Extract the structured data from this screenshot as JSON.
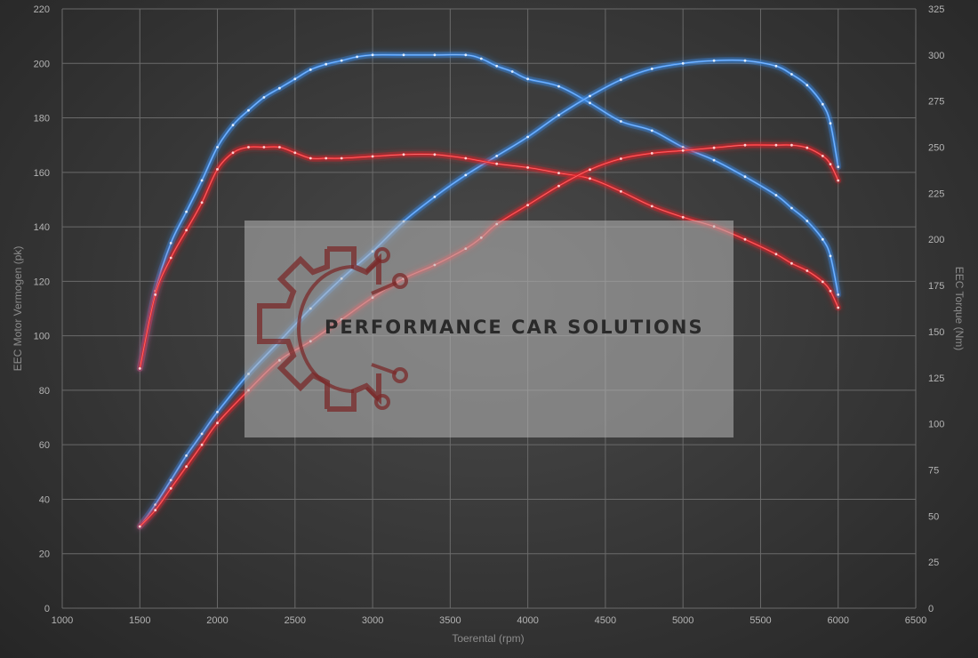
{
  "chart_data": {
    "type": "line",
    "xlabel": "Toerental (rpm)",
    "ylabel_left": "EEC Motor Vermogen (pk)",
    "ylabel_right": "EEC Torque (Nm)",
    "xlim": [
      1000,
      6500
    ],
    "ylim_left": [
      0,
      220
    ],
    "ylim_right": [
      0,
      325
    ],
    "x_ticks": [
      1000,
      1500,
      2000,
      2500,
      3000,
      3500,
      4000,
      4500,
      5000,
      5500,
      6000,
      6500
    ],
    "y_left_ticks": [
      0,
      20,
      40,
      60,
      80,
      100,
      120,
      140,
      160,
      180,
      200,
      220
    ],
    "y_right_ticks": [
      0,
      25,
      50,
      75,
      100,
      125,
      150,
      175,
      200,
      225,
      250,
      275,
      300,
      325
    ],
    "grid": true,
    "series": [
      {
        "color": "#3d8ff0",
        "axis": "right",
        "x": [
          1500,
          1600,
          1700,
          1800,
          1900,
          2000,
          2100,
          2200,
          2300,
          2400,
          2500,
          2600,
          2700,
          2800,
          2900,
          3000,
          3200,
          3400,
          3600,
          3700,
          3800,
          3900,
          4000,
          4200,
          4400,
          4600,
          4800,
          5000,
          5200,
          5400,
          5600,
          5700,
          5800,
          5900,
          5950,
          6000
        ],
        "values": [
          130,
          172,
          198,
          215,
          232,
          250,
          262,
          270,
          277,
          282,
          287,
          292,
          295,
          297,
          299,
          300,
          300,
          300,
          300,
          298,
          294,
          291,
          287,
          283,
          274,
          264,
          259,
          250,
          243,
          234,
          224,
          217,
          210,
          200,
          191,
          170
        ]
      },
      {
        "color": "#3d8ff0",
        "axis": "left",
        "x": [
          1500,
          1600,
          1700,
          1800,
          1900,
          2000,
          2200,
          2400,
          2600,
          2800,
          3000,
          3200,
          3400,
          3600,
          3800,
          4000,
          4200,
          4400,
          4600,
          4800,
          5000,
          5200,
          5400,
          5600,
          5700,
          5800,
          5900,
          5950,
          6000
        ],
        "values": [
          30,
          38,
          47,
          56,
          64,
          72,
          86,
          98,
          110,
          121,
          131,
          142,
          151,
          159,
          166,
          173,
          181,
          188,
          194,
          198,
          200,
          201,
          201,
          199,
          196,
          192,
          185,
          178,
          162
        ]
      },
      {
        "color": "#e5252a",
        "axis": "right",
        "x": [
          1500,
          1600,
          1700,
          1800,
          1900,
          2000,
          2100,
          2200,
          2300,
          2400,
          2500,
          2600,
          2700,
          2800,
          3000,
          3200,
          3400,
          3600,
          3800,
          4000,
          4200,
          4400,
          4600,
          4800,
          5000,
          5200,
          5400,
          5600,
          5700,
          5800,
          5900,
          5950,
          6000
        ],
        "values": [
          130,
          170,
          190,
          205,
          220,
          238,
          247,
          250,
          250,
          250,
          247,
          244,
          244,
          244,
          245,
          246,
          246,
          244,
          241,
          239,
          236,
          233,
          226,
          218,
          212,
          207,
          200,
          192,
          187,
          183,
          177,
          172,
          163
        ]
      },
      {
        "color": "#e5252a",
        "axis": "left",
        "x": [
          1500,
          1600,
          1700,
          1800,
          1900,
          2000,
          2200,
          2400,
          2600,
          2800,
          3000,
          3200,
          3400,
          3600,
          3700,
          3800,
          4000,
          4200,
          4400,
          4600,
          4800,
          5000,
          5200,
          5400,
          5600,
          5700,
          5800,
          5900,
          5950,
          6000
        ],
        "values": [
          30,
          36,
          44,
          52,
          60,
          68,
          80,
          91,
          98,
          106,
          114,
          121,
          126,
          132,
          136,
          141,
          148,
          155,
          161,
          165,
          167,
          168,
          169,
          170,
          170,
          170,
          169,
          166,
          163,
          157
        ]
      }
    ],
    "watermark": "PERFORMANCE CAR SOLUTIONS"
  }
}
